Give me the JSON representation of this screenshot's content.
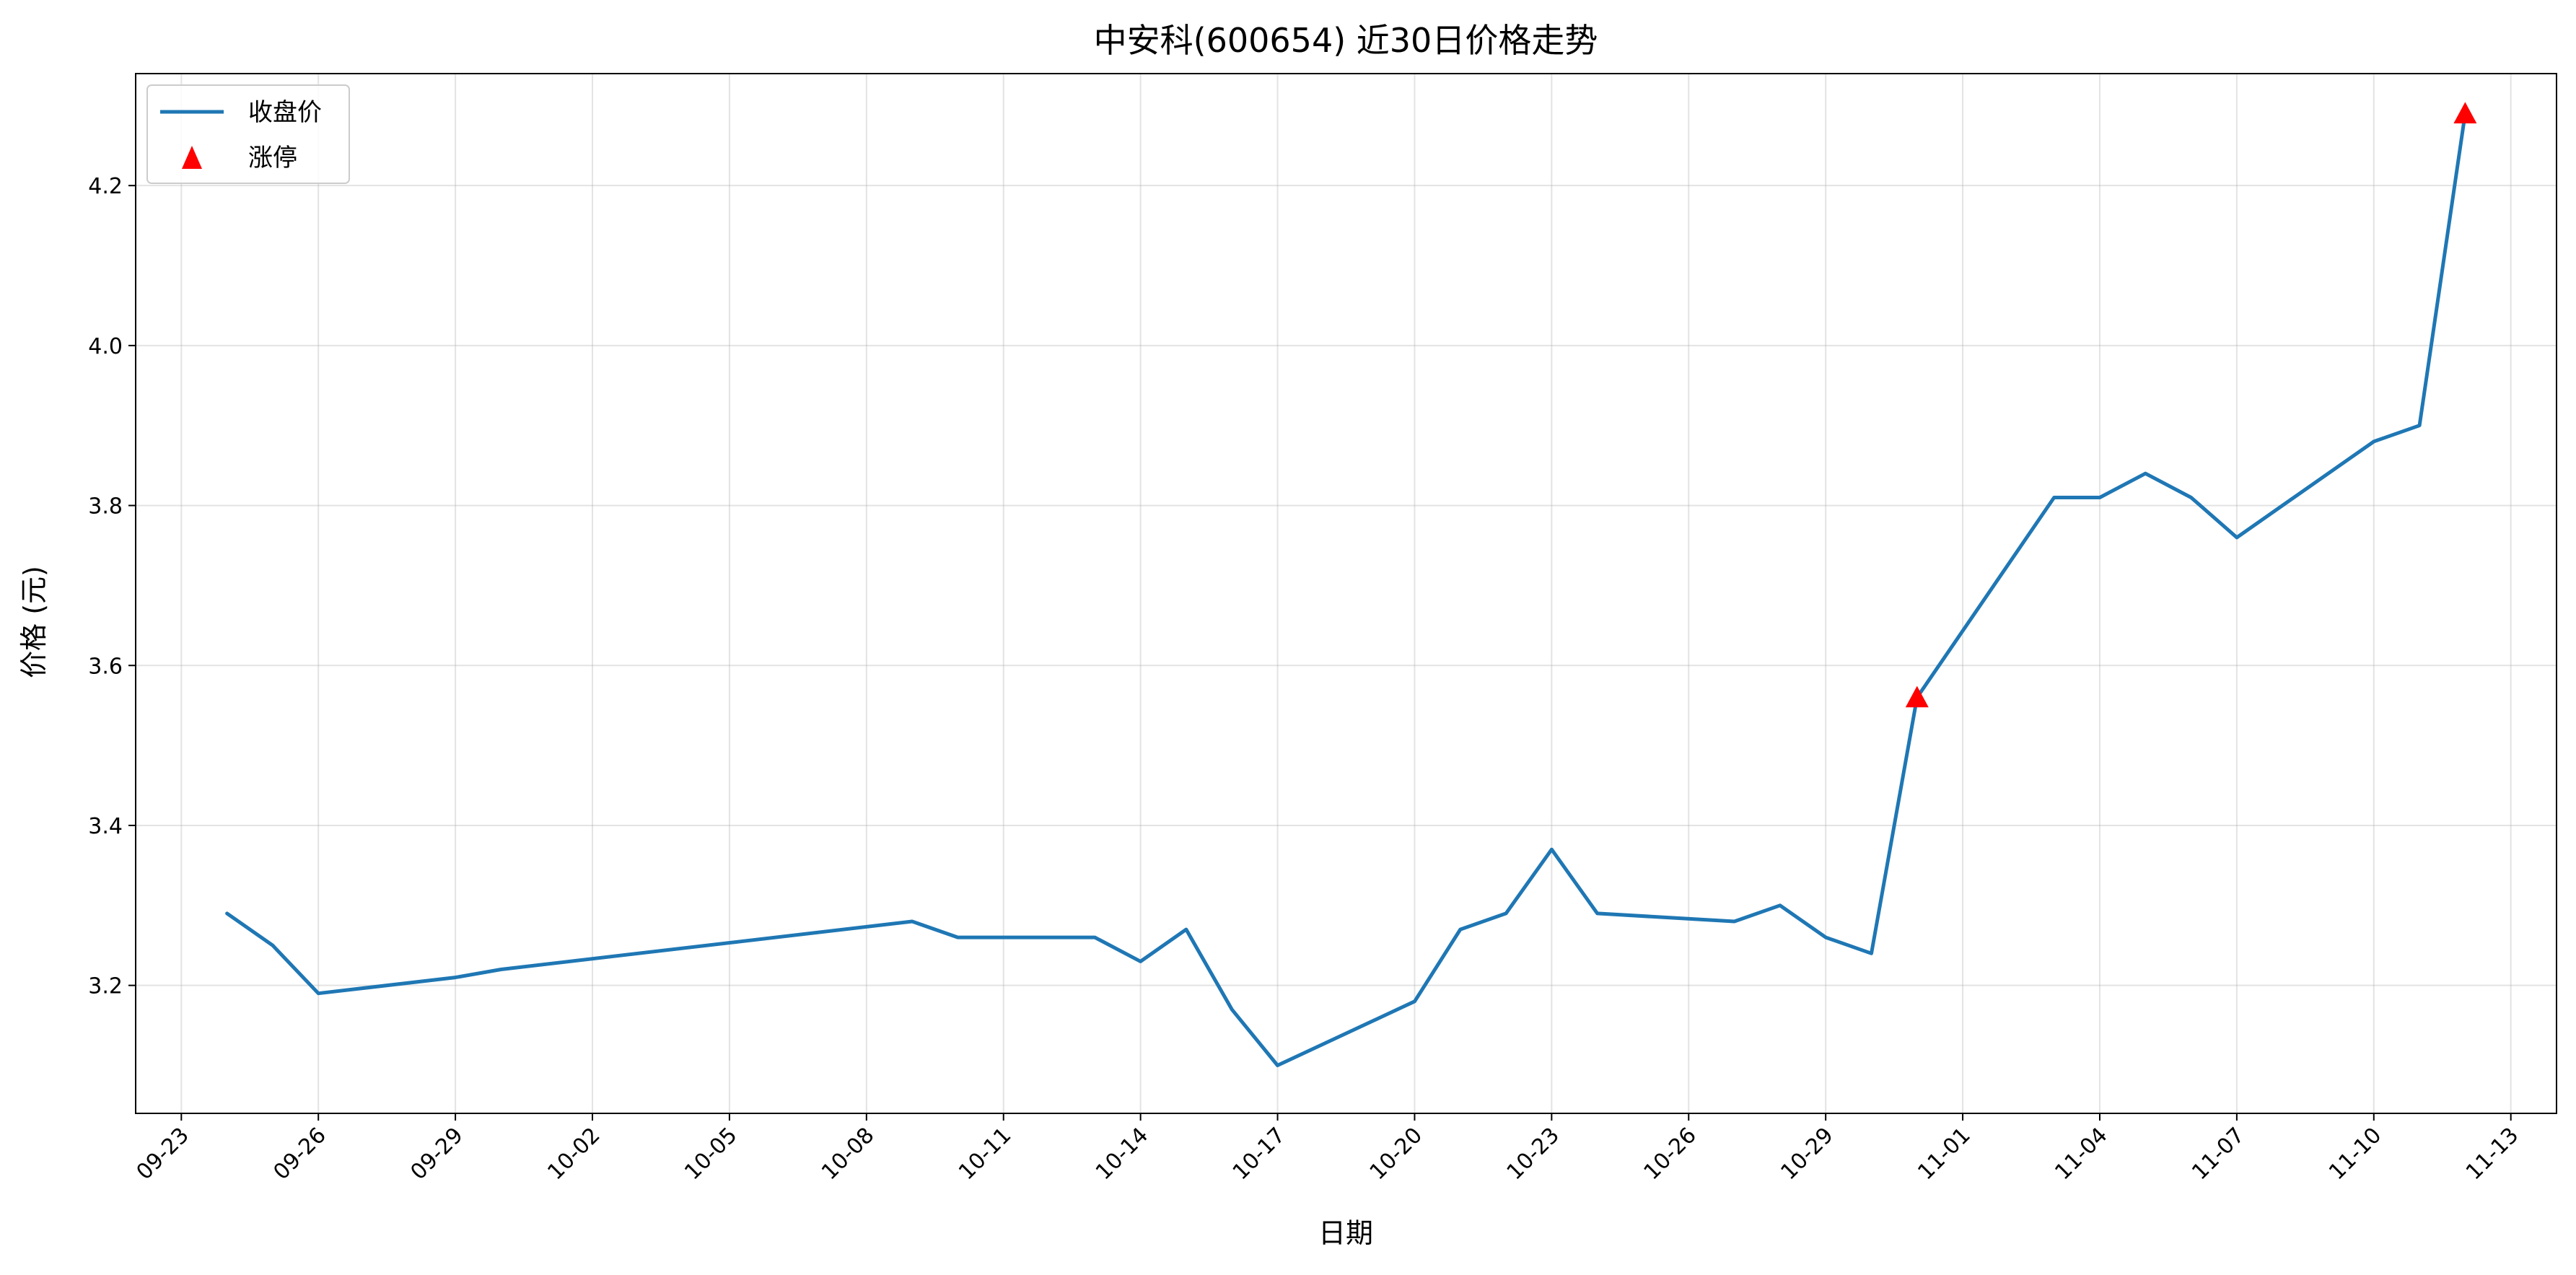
{
  "chart_data": {
    "type": "line",
    "title": "中安科(600654) 近30日价格走势",
    "xlabel": "日期",
    "ylabel": "价格 (元)",
    "xlim": [
      "2024-09-22",
      "2024-11-14"
    ],
    "ylim": [
      3.04,
      4.34
    ],
    "grid": true,
    "legend_position": "top-left",
    "x_ticks": [
      "09-23",
      "09-26",
      "09-29",
      "10-02",
      "10-05",
      "10-08",
      "10-11",
      "10-14",
      "10-17",
      "10-20",
      "10-23",
      "10-26",
      "10-29",
      "11-01",
      "11-04",
      "11-07",
      "11-10",
      "11-13"
    ],
    "y_ticks": [
      "3.2",
      "3.4",
      "3.6",
      "3.8",
      "4.0",
      "4.2"
    ],
    "series": [
      {
        "name": "收盘价",
        "kind": "line",
        "color": "#1f77b4",
        "points": [
          {
            "x": "2024-09-24",
            "y": 3.29
          },
          {
            "x": "2024-09-25",
            "y": 3.25
          },
          {
            "x": "2024-09-26",
            "y": 3.19
          },
          {
            "x": "2024-09-29",
            "y": 3.21
          },
          {
            "x": "2024-09-30",
            "y": 3.22
          },
          {
            "x": "2024-10-09",
            "y": 3.28
          },
          {
            "x": "2024-10-10",
            "y": 3.26
          },
          {
            "x": "2024-10-11",
            "y": 3.26
          },
          {
            "x": "2024-10-12",
            "y": 3.26
          },
          {
            "x": "2024-10-13",
            "y": 3.26
          },
          {
            "x": "2024-10-14",
            "y": 3.23
          },
          {
            "x": "2024-10-15",
            "y": 3.27
          },
          {
            "x": "2024-10-16",
            "y": 3.17
          },
          {
            "x": "2024-10-17",
            "y": 3.1
          },
          {
            "x": "2024-10-20",
            "y": 3.18
          },
          {
            "x": "2024-10-21",
            "y": 3.27
          },
          {
            "x": "2024-10-22",
            "y": 3.29
          },
          {
            "x": "2024-10-23",
            "y": 3.37
          },
          {
            "x": "2024-10-24",
            "y": 3.29
          },
          {
            "x": "2024-10-27",
            "y": 3.28
          },
          {
            "x": "2024-10-28",
            "y": 3.3
          },
          {
            "x": "2024-10-29",
            "y": 3.26
          },
          {
            "x": "2024-10-30",
            "y": 3.24
          },
          {
            "x": "2024-10-31",
            "y": 3.56
          },
          {
            "x": "2024-11-03",
            "y": 3.81
          },
          {
            "x": "2024-11-04",
            "y": 3.81
          },
          {
            "x": "2024-11-05",
            "y": 3.84
          },
          {
            "x": "2024-11-06",
            "y": 3.81
          },
          {
            "x": "2024-11-07",
            "y": 3.76
          },
          {
            "x": "2024-11-10",
            "y": 3.88
          },
          {
            "x": "2024-11-11",
            "y": 3.9
          },
          {
            "x": "2024-11-12",
            "y": 4.29
          }
        ]
      },
      {
        "name": "涨停",
        "kind": "marker",
        "marker": "triangle-up",
        "color": "#ff0000",
        "points": [
          {
            "x": "2024-10-31",
            "y": 3.56
          },
          {
            "x": "2024-11-12",
            "y": 4.29
          }
        ]
      }
    ]
  }
}
